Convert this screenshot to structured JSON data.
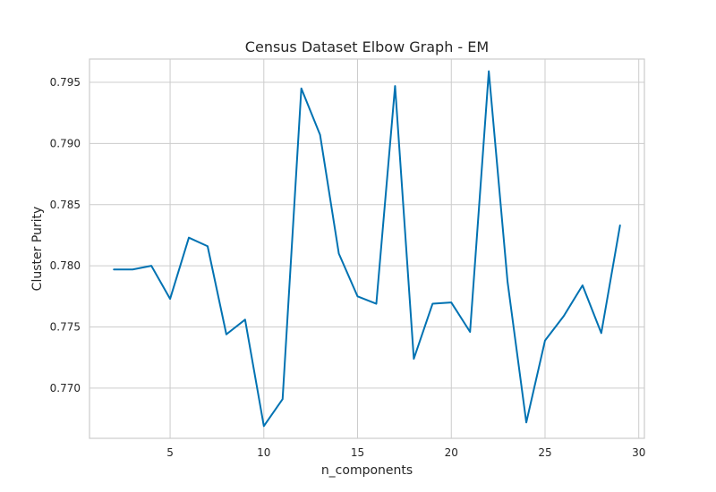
{
  "chart_data": {
    "type": "line",
    "title": "Census Dataset Elbow Graph - EM",
    "xlabel": "n_components",
    "ylabel": "Cluster Purity",
    "xlim": [
      0.7,
      30.3
    ],
    "ylim": [
      0.7659,
      0.7969
    ],
    "xticks": [
      5,
      10,
      15,
      20,
      25,
      30
    ],
    "yticks": [
      0.77,
      0.775,
      0.78,
      0.785,
      0.79,
      0.795
    ],
    "ytick_labels": [
      "0.770",
      "0.775",
      "0.780",
      "0.785",
      "0.790",
      "0.795"
    ],
    "grid": true,
    "line_color": "#0072B2",
    "series": [
      {
        "x": [
          2,
          3,
          4,
          5,
          6,
          7,
          8,
          9,
          10,
          11,
          12,
          13,
          14,
          15,
          16,
          17,
          18,
          19,
          20,
          21,
          22,
          23,
          24,
          25,
          26,
          27,
          28,
          29
        ],
        "values": [
          0.7797,
          0.7797,
          0.78,
          0.7773,
          0.7823,
          0.7816,
          0.7744,
          0.7756,
          0.7669,
          0.7691,
          0.7945,
          0.7907,
          0.781,
          0.7775,
          0.7769,
          0.7947,
          0.7724,
          0.7769,
          0.777,
          0.7746,
          0.7959,
          0.7787,
          0.7672,
          0.7739,
          0.7759,
          0.7784,
          0.7745,
          0.7833
        ]
      }
    ]
  }
}
